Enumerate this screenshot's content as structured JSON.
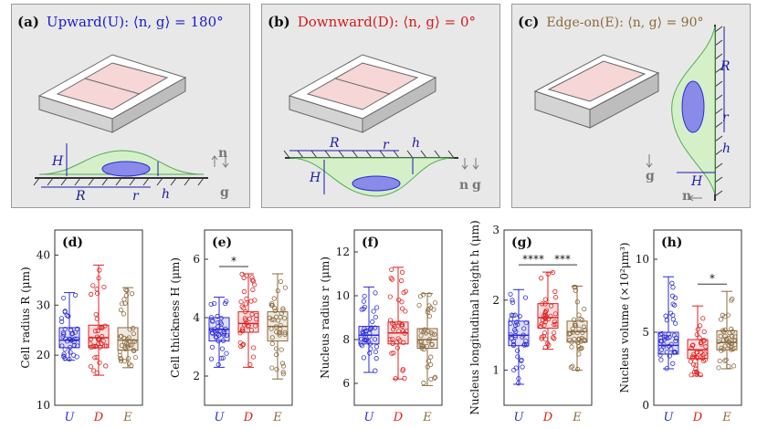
{
  "panels": [
    {
      "label": "(a)",
      "title": "Upward(U): ⟨n, g⟩ = 180°",
      "color": "#1a1acc"
    },
    {
      "label": "(b)",
      "title": "Downward(D): ⟨n, g⟩ = 0°",
      "color": "#d41a1a"
    },
    {
      "label": "(c)",
      "title": "Edge-on(E): ⟨n, g⟩ = 90°",
      "color": "#8a6a3a"
    }
  ],
  "symbols": {
    "H": "H",
    "R": "R",
    "r": "r",
    "h": "h",
    "n": "n",
    "g": "g"
  },
  "colors": {
    "U": "#2b2bd6",
    "D": "#e02020",
    "E": "#8b6a3e"
  },
  "chart_data": [
    {
      "panel": "(d)",
      "type": "box",
      "ylabel": "Cell radius R (μm)",
      "ylim": [
        10,
        45
      ],
      "yticks": [
        10,
        20,
        30,
        40
      ],
      "categories": [
        "U",
        "D",
        "E"
      ],
      "boxes": [
        {
          "min": 19,
          "q1": 21.5,
          "median": 23,
          "q3": 25.5,
          "max": 32.5
        },
        {
          "min": 16,
          "q1": 21.5,
          "median": 23.5,
          "q3": 26,
          "max": 38
        },
        {
          "min": 17.5,
          "q1": 21,
          "median": 23,
          "q3": 25.5,
          "max": 33.5
        }
      ],
      "significance": []
    },
    {
      "panel": "(e)",
      "type": "box",
      "ylabel": "Cell thickness H (μm)",
      "ylim": [
        1,
        7
      ],
      "yticks": [
        2,
        4,
        6
      ],
      "categories": [
        "U",
        "D",
        "E"
      ],
      "boxes": [
        {
          "min": 2.3,
          "q1": 3.2,
          "median": 3.6,
          "q3": 4,
          "max": 4.7
        },
        {
          "min": 2.3,
          "q1": 3.5,
          "median": 3.8,
          "q3": 4.2,
          "max": 5.5
        },
        {
          "min": 1.9,
          "q1": 3.2,
          "median": 3.7,
          "q3": 4.2,
          "max": 5.5
        }
      ],
      "significance": [
        {
          "from": 0,
          "to": 1,
          "label": "*"
        }
      ]
    },
    {
      "panel": "(f)",
      "type": "box",
      "ylabel": "Nucleus radius r (μm)",
      "ylim": [
        5,
        13
      ],
      "yticks": [
        6,
        8,
        10,
        12
      ],
      "categories": [
        "U",
        "D",
        "E"
      ],
      "boxes": [
        {
          "min": 6.5,
          "q1": 7.8,
          "median": 8.2,
          "q3": 8.6,
          "max": 10.4
        },
        {
          "min": 6.2,
          "q1": 7.8,
          "median": 8.3,
          "q3": 8.8,
          "max": 11.3
        },
        {
          "min": 5.9,
          "q1": 7.6,
          "median": 8,
          "q3": 8.5,
          "max": 10.1
        }
      ],
      "significance": []
    },
    {
      "panel": "(g)",
      "type": "box",
      "ylabel": "Nucleus longitudinal height h (μm)",
      "ylim": [
        0.5,
        3
      ],
      "yticks": [
        1,
        2,
        3
      ],
      "categories": [
        "U",
        "D",
        "E"
      ],
      "boxes": [
        {
          "min": 0.8,
          "q1": 1.35,
          "median": 1.5,
          "q3": 1.7,
          "max": 2.15
        },
        {
          "min": 1.3,
          "q1": 1.6,
          "median": 1.75,
          "q3": 1.95,
          "max": 2.4
        },
        {
          "min": 1.0,
          "q1": 1.4,
          "median": 1.55,
          "q3": 1.7,
          "max": 2.2
        }
      ],
      "significance": [
        {
          "from": 0,
          "to": 1,
          "label": "****"
        },
        {
          "from": 1,
          "to": 2,
          "label": "***"
        }
      ]
    },
    {
      "panel": "(h)",
      "type": "box",
      "ylabel": "Nucleus volume (×10²μm³)",
      "ylim": [
        0,
        12
      ],
      "yticks": [
        0,
        5,
        10
      ],
      "categories": [
        "U",
        "D",
        "E"
      ],
      "boxes": [
        {
          "min": 2.5,
          "q1": 3.5,
          "median": 4.1,
          "q3": 5,
          "max": 8.8
        },
        {
          "min": 2,
          "q1": 3.2,
          "median": 3.8,
          "q3": 4.5,
          "max": 6.8
        },
        {
          "min": 2.5,
          "q1": 3.8,
          "median": 4.3,
          "q3": 5.1,
          "max": 7.8
        }
      ],
      "significance": [
        {
          "from": 1,
          "to": 2,
          "label": "*"
        }
      ]
    }
  ]
}
